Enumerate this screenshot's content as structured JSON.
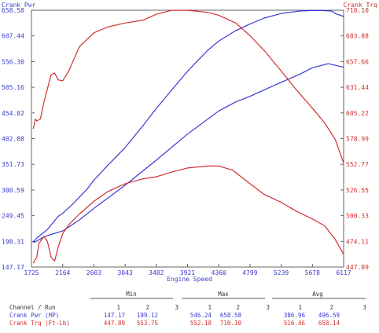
{
  "chart_data": {
    "type": "line",
    "title": "",
    "xlabel": "Engine Speed",
    "ylabel_left": "Crank Pwr",
    "ylabel_right": "Crank Trq",
    "x_ticks": [
      "1725",
      "2164",
      "2603",
      "3043",
      "3482",
      "3921",
      "4360",
      "4799",
      "5239",
      "5678",
      "6117"
    ],
    "y_left_ticks": [
      "147.17",
      "198.31",
      "249.45",
      "300.59",
      "351.73",
      "402.88",
      "454.02",
      "505.16",
      "556.30",
      "607.44",
      "658.58"
    ],
    "y_right_ticks": [
      "447.89",
      "474.11",
      "500.33",
      "526.55",
      "552.77",
      "578.99",
      "605.22",
      "631.44",
      "657.66",
      "683.88",
      "710.10"
    ],
    "xlim": [
      1725,
      6117
    ],
    "ylim_left": [
      147.17,
      658.58
    ],
    "ylim_right": [
      447.89,
      710.1
    ],
    "grid": false,
    "colors": {
      "power": "#3a3ad0",
      "torque": "#d03030"
    },
    "series": [
      {
        "name": "Crank Pwr (HP) Run 1",
        "axis": "left",
        "color": "#3a3ad0",
        "x": [
          1750,
          1800,
          1900,
          2000,
          2164,
          2400,
          2603,
          3043,
          3482,
          3921,
          4360,
          4600,
          4799,
          5000,
          5239,
          5500,
          5678,
          5900,
          6117
        ],
        "y": [
          196,
          199,
          207,
          212,
          219,
          241,
          264,
          310,
          360,
          412,
          458,
          476,
          487,
          500,
          515,
          531,
          544,
          552,
          545
        ]
      },
      {
        "name": "Crank Pwr (HP) Run 2",
        "axis": "left",
        "color": "#3a3ad0",
        "x": [
          1750,
          1800,
          1950,
          2100,
          2164,
          2300,
          2500,
          2603,
          2800,
          3043,
          3300,
          3482,
          3700,
          3921,
          4200,
          4360,
          4600,
          4799,
          5000,
          5239,
          5500,
          5678,
          5800,
          5950,
          6000,
          6117
        ],
        "y": [
          197,
          205,
          222,
          248,
          254,
          272,
          301,
          320,
          350,
          385,
          430,
          463,
          500,
          537,
          578,
          597,
          618,
          631,
          643,
          652,
          657,
          658,
          658,
          657,
          652,
          646
        ]
      },
      {
        "name": "Crank Trq (Ft-Lb) Run 1",
        "axis": "right",
        "color": "#d03030",
        "x": [
          1750,
          1800,
          1830,
          1900,
          1950,
          2000,
          2050,
          2100,
          2164,
          2250,
          2400,
          2603,
          2800,
          3043,
          3300,
          3482,
          3700,
          3921,
          4200,
          4360,
          4550,
          4799,
          5000,
          5239,
          5450,
          5678,
          5850,
          6000,
          6117
        ],
        "y": [
          452,
          458,
          472,
          479,
          474,
          458,
          454,
          468,
          482,
          491,
          502,
          515,
          525,
          533,
          538,
          540,
          545,
          549,
          551,
          551,
          547,
          533,
          522,
          514,
          505,
          497,
          490,
          476,
          461
        ]
      },
      {
        "name": "Crank Trq (Ft-Lb) Run 2",
        "axis": "right",
        "color": "#d03030",
        "x": [
          1750,
          1780,
          1800,
          1850,
          1900,
          2000,
          2050,
          2100,
          2164,
          2250,
          2400,
          2603,
          2800,
          3043,
          3300,
          3482,
          3700,
          3921,
          4200,
          4360,
          4600,
          4799,
          5000,
          5239,
          5450,
          5678,
          5850,
          6000,
          6117
        ],
        "y": [
          589,
          599,
          597,
          599,
          616,
          644,
          646,
          639,
          638,
          648,
          673,
          687,
          693,
          697,
          700,
          706,
          710,
          710,
          708,
          705,
          697,
          684,
          669,
          648,
          629,
          610,
          595,
          578,
          554
        ]
      }
    ]
  },
  "stats": {
    "labels": {
      "channel_run": "Channel / Run",
      "min": "Min",
      "max": "Max",
      "avg": "Avg",
      "one": "1",
      "two": "2",
      "three": "3"
    },
    "rows": [
      {
        "name": "Crank Pwr (HP)",
        "color": "#3a3ad0",
        "min1": "147.17",
        "min2": "199.12",
        "max1": "546.24",
        "max2": "658.58",
        "avg1": "386.96",
        "avg2": "496.59"
      },
      {
        "name": "Crank Trq (Ft-Lb)",
        "color": "#d03030",
        "min1": "447.89",
        "min2": "553.75",
        "max1": "552.18",
        "max2": "710.10",
        "avg1": "516.46",
        "avg2": "658.14"
      }
    ]
  }
}
